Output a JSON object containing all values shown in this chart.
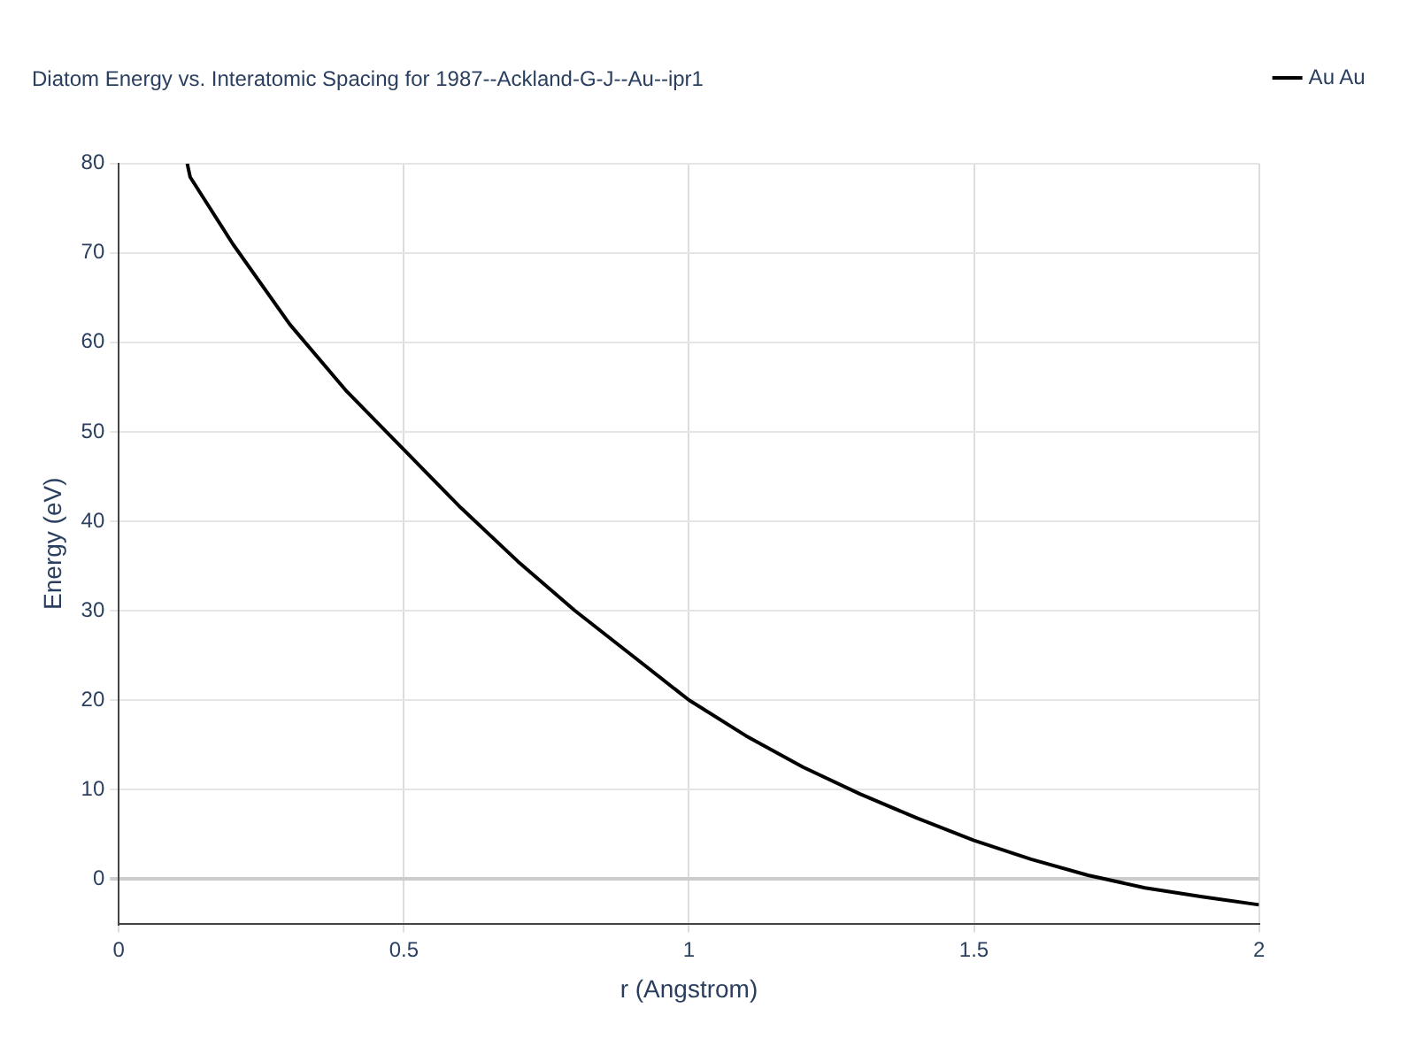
{
  "chart_data": {
    "type": "line",
    "title": "Diatom Energy vs. Interatomic Spacing for 1987--Ackland-G-J--Au--ipr1",
    "xlabel": "r (Angstrom)",
    "ylabel": "Energy (eV)",
    "x": [
      0.12,
      0.125,
      0.2,
      0.3,
      0.4,
      0.5,
      0.6,
      0.7,
      0.8,
      0.9,
      1.0,
      1.1,
      1.2,
      1.3,
      1.4,
      1.5,
      1.6,
      1.7,
      1.8,
      1.9,
      2.0
    ],
    "series": [
      {
        "name": "Au Au",
        "color": "#000000",
        "values": [
          80,
          78.5,
          71,
          62,
          54.5,
          48,
          41.5,
          35.5,
          30,
          25,
          20,
          16,
          12.5,
          9.5,
          6.8,
          4.3,
          2.2,
          0.4,
          -1,
          -2,
          -2.9
        ]
      }
    ],
    "xlim": [
      0,
      2
    ],
    "xticks": [
      0,
      0.5,
      1,
      1.5,
      2
    ],
    "ylim": [
      -5,
      80
    ],
    "yticks": [
      0,
      10,
      20,
      30,
      40,
      50,
      60,
      70,
      80
    ],
    "grid": true,
    "legend": "top right",
    "marker": "none",
    "line_style": "solid"
  }
}
